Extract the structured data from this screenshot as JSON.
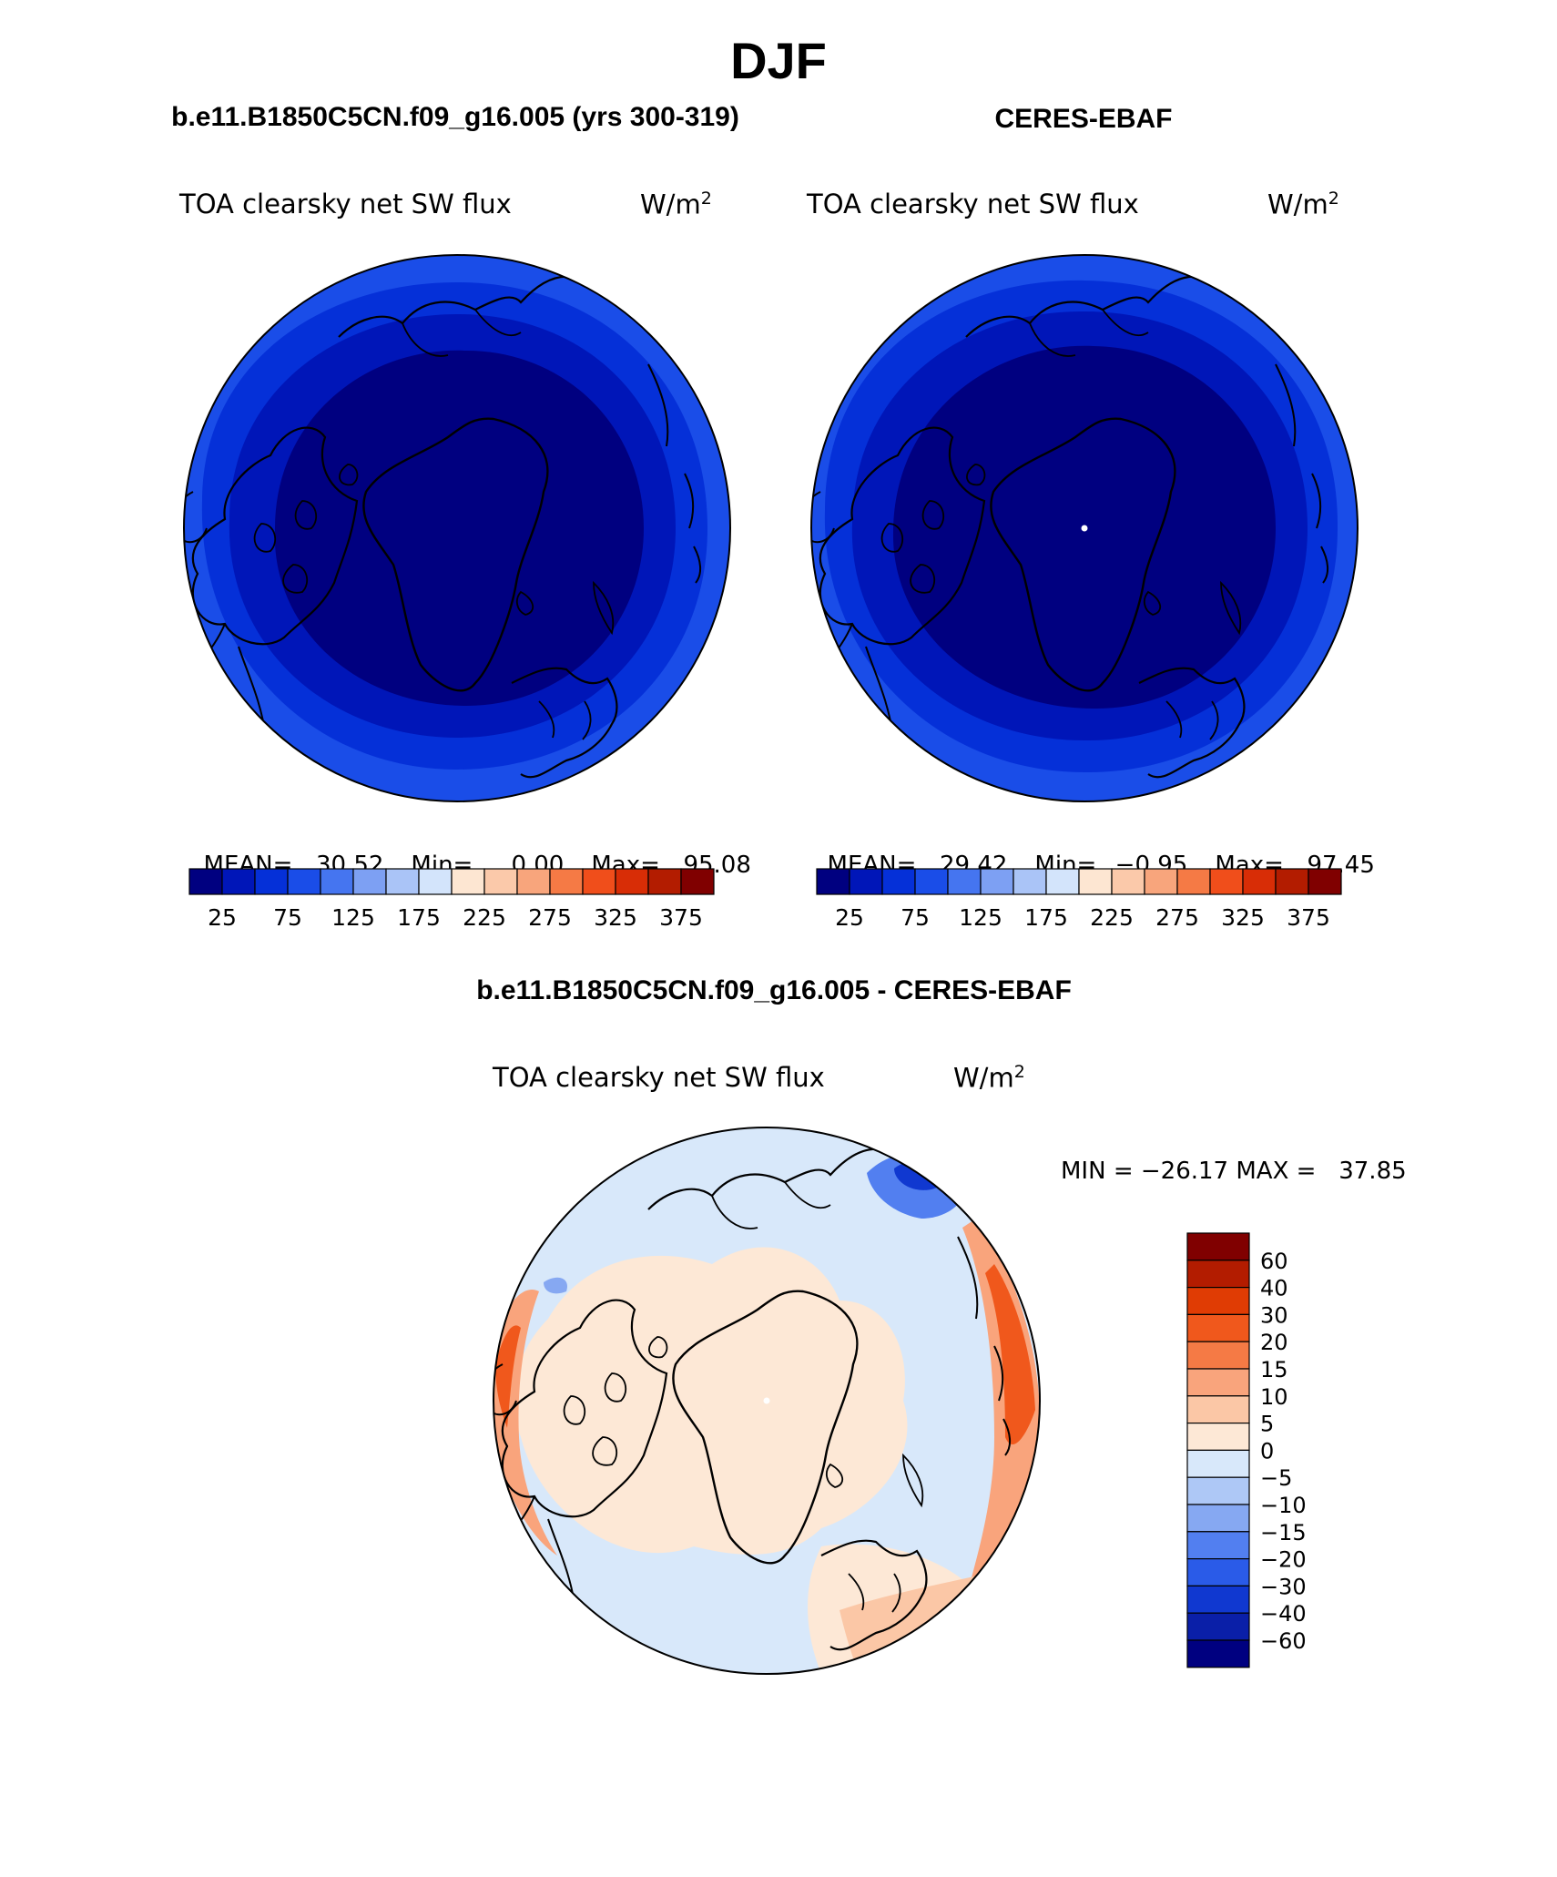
{
  "page_title": "DJF",
  "panels": {
    "model": {
      "case_title": "b.e11.B1850C5CN.f09_g16.005 (yrs 300-319)",
      "variable": "TOA clearsky net SW flux",
      "units_base": "W/m",
      "units_exp": "2",
      "stats": {
        "mean_label": "MEAN=",
        "mean": "30.52",
        "min_label": "Min=",
        "min": "0.00",
        "max_label": "Max=",
        "max": "95.08"
      }
    },
    "obs": {
      "case_title": "CERES-EBAF",
      "variable": "TOA clearsky net SW flux",
      "units_base": "W/m",
      "units_exp": "2",
      "stats": {
        "mean_label": "MEAN=",
        "mean": "29.42",
        "min_label": "Min=",
        "min": "−0.95",
        "max_label": "Max=",
        "max": "97.45"
      }
    },
    "diff": {
      "case_title": "b.e11.B1850C5CN.f09_g16.005 - CERES-EBAF",
      "variable": "TOA clearsky net SW flux",
      "units_base": "W/m",
      "units_exp": "2",
      "minmax": "MIN = −26.17 MAX =   37.85"
    }
  },
  "colorbars": {
    "abs": {
      "colors": [
        "#000080",
        "#0016b8",
        "#0530d8",
        "#1a4de8",
        "#4575f0",
        "#7da0f3",
        "#aac4f7",
        "#d3e4fb",
        "#fde6d2",
        "#fbc9aa",
        "#f8a57c",
        "#f57a45",
        "#f04e1b",
        "#d82d06",
        "#b31c00",
        "#800000"
      ],
      "labels": [
        "25",
        "75",
        "125",
        "175",
        "225",
        "275",
        "325",
        "375"
      ]
    },
    "diff": {
      "colors": [
        "#800000",
        "#b31c00",
        "#e03c04",
        "#f0581c",
        "#f57a45",
        "#f9a47c",
        "#fbc7a6",
        "#fde8d6",
        "#d8e8fa",
        "#aec8f6",
        "#86a8f2",
        "#527ff0",
        "#2a5be8",
        "#1038d0",
        "#0a1fa8",
        "#000080"
      ],
      "labels": [
        "60",
        "40",
        "30",
        "20",
        "15",
        "10",
        "5",
        "0",
        "−5",
        "−10",
        "−15",
        "−20",
        "−30",
        "−40",
        "−60"
      ]
    }
  },
  "maps": {
    "model": {
      "field": "TOA clearsky net SW flux (model)",
      "band_values": [
        25,
        50,
        75,
        100
      ]
    },
    "obs": {
      "field": "TOA clearsky net SW flux (CERES-EBAF)",
      "band_values": [
        25,
        50,
        75,
        100
      ]
    },
    "diff": {
      "field": "model - obs difference",
      "dominant_values": [
        5,
        -5,
        20
      ]
    }
  }
}
